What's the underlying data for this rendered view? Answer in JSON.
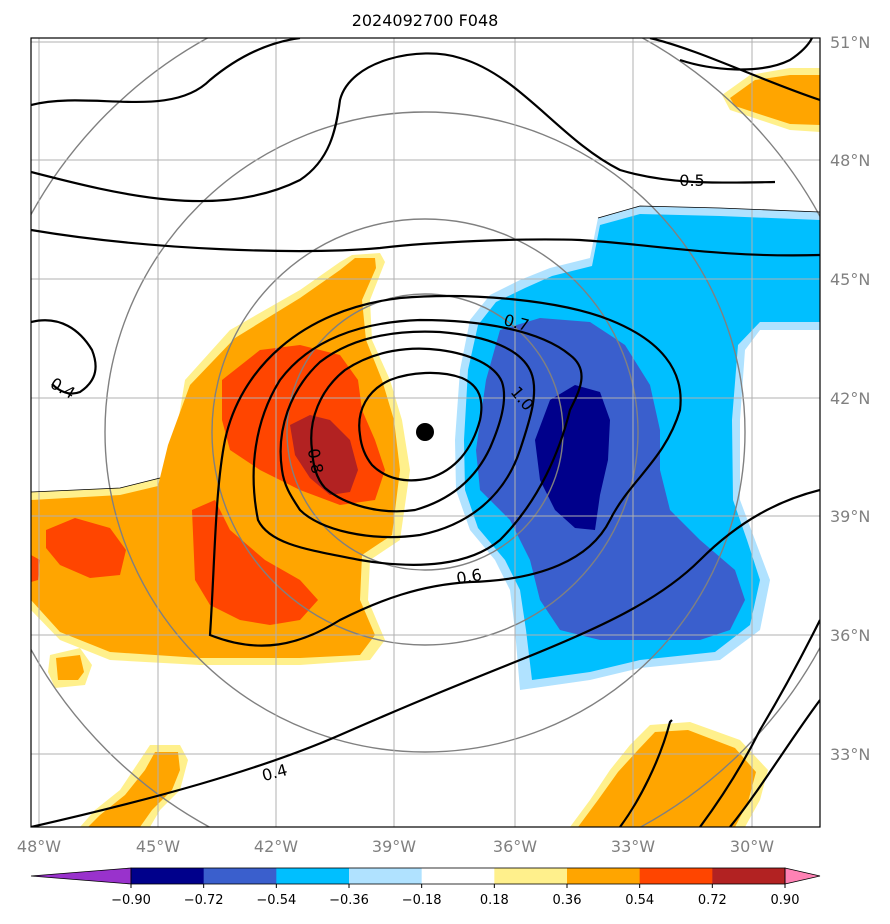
{
  "title": "2024092700 F048",
  "map": {
    "lon_ticks": [
      "48°W",
      "45°W",
      "42°W",
      "39°W",
      "36°W",
      "33°W",
      "30°W"
    ],
    "lat_ticks": [
      "51°N",
      "48°N",
      "45°N",
      "42°N",
      "39°N",
      "36°N",
      "33°N"
    ],
    "gridlines": true,
    "center_marker": "storm-center-dot",
    "contour_labels": [
      "0.5",
      "0.7",
      "1.0",
      "0.8",
      "0.4",
      "0.6",
      "0.4"
    ]
  },
  "colorbar": {
    "tick_labels": [
      "−0.90",
      "−0.72",
      "−0.54",
      "−0.36",
      "−0.18",
      "0.18",
      "0.36",
      "0.54",
      "0.72",
      "0.90"
    ],
    "colors": [
      "#9932cc",
      "#00008b",
      "#3a5fcd",
      "#00bfff",
      "#b0e2ff",
      "#ffffff",
      "#fff08c",
      "#ffa500",
      "#ff4500",
      "#b22222",
      "#ff82b4"
    ],
    "extend": "both"
  }
}
